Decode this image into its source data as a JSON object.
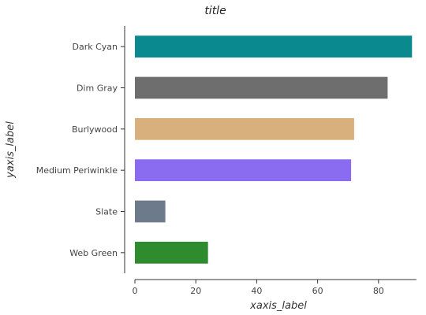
{
  "chart_data": {
    "type": "bar",
    "orientation": "horizontal",
    "title": "title",
    "xlabel": "xaxis_label",
    "ylabel": "yaxis_label",
    "categories": [
      "Web Green",
      "Slate",
      "Medium Periwinkle",
      "Burlywood",
      "Dim Gray",
      "Dark Cyan"
    ],
    "values": [
      24,
      10,
      71,
      72,
      83,
      91
    ],
    "colors": [
      "#2e8b2e",
      "#6c7a8c",
      "#8a6cf0",
      "#d8b07e",
      "#6e6e6e",
      "#0a8a8e"
    ],
    "xlim": [
      0,
      93
    ],
    "xticks": [
      0,
      20,
      40,
      60,
      80
    ],
    "grid": false,
    "legend": "none"
  }
}
